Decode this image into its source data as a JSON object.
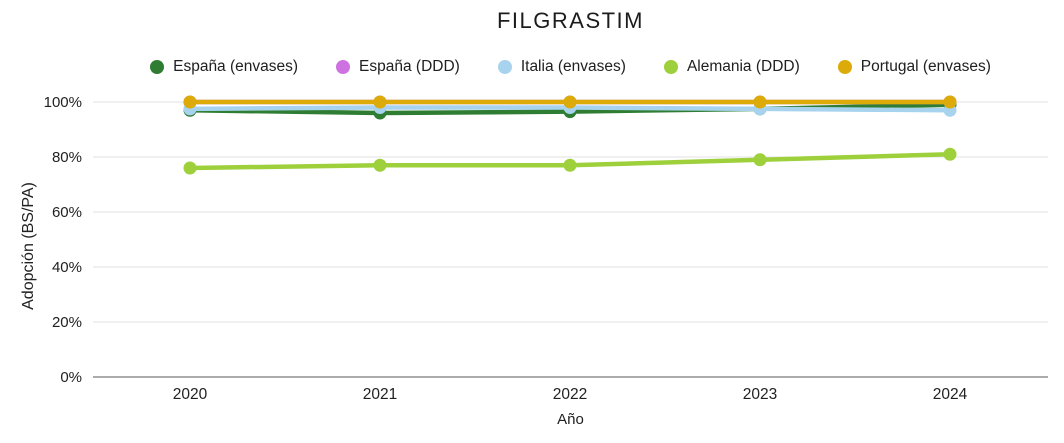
{
  "title": "FILGRASTIM",
  "legend": [
    {
      "id": "espana-envases",
      "label": "España (envases)",
      "color": "#2e7d32"
    },
    {
      "id": "espana-ddd",
      "label": "España (DDD)",
      "color": "#cf72e1"
    },
    {
      "id": "italia-envases",
      "label": "Italia (envases)",
      "color": "#a7d3ef"
    },
    {
      "id": "alemania-ddd",
      "label": "Alemania (DDD)",
      "color": "#9ed03c"
    },
    {
      "id": "portugal-envases",
      "label": "Portugal (envases)",
      "color": "#dcab09"
    }
  ],
  "axes": {
    "x_label": "Año",
    "y_label": "Adopción (BS/PA)",
    "x_ticks": [
      "2020",
      "2021",
      "2022",
      "2023",
      "2024"
    ],
    "y_ticks": [
      "0%",
      "20%",
      "40%",
      "60%",
      "80%",
      "100%"
    ]
  },
  "chart_data": {
    "type": "line",
    "title": "FILGRASTIM",
    "xlabel": "Año",
    "ylabel": "Adopción (BS/PA)",
    "x": [
      2020,
      2021,
      2022,
      2023,
      2024
    ],
    "ylim": [
      0,
      100
    ],
    "yticks_percent": [
      0,
      20,
      40,
      60,
      80,
      100
    ],
    "grid": true,
    "legend_position": "top",
    "series": [
      {
        "name": "España (envases)",
        "color": "#2e7d32",
        "values": [
          97,
          96,
          96.5,
          97.5,
          99
        ]
      },
      {
        "name": "España (DDD)",
        "color": "#cf72e1",
        "values": [
          100,
          100,
          100,
          100,
          100
        ]
      },
      {
        "name": "Italia (envases)",
        "color": "#a7d3ef",
        "values": [
          97.5,
          98,
          98,
          97.5,
          97
        ]
      },
      {
        "name": "Alemania (DDD)",
        "color": "#9ed03c",
        "values": [
          76,
          77,
          77,
          79,
          81
        ]
      },
      {
        "name": "Portugal (envases)",
        "color": "#dcab09",
        "values": [
          100,
          100,
          100,
          100,
          100
        ]
      }
    ]
  },
  "colors": {
    "grid": "#e2e2e2",
    "axis_line": "#8f8f8f",
    "tick_text": "#212121"
  }
}
